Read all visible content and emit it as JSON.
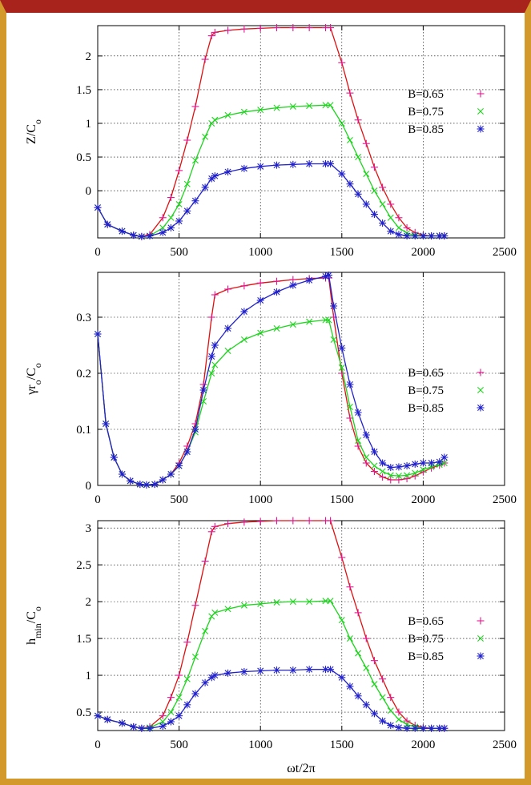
{
  "chart_data": [
    {
      "type": "line",
      "ylabel": "Z/C",
      "ylabel_sub": "o",
      "xlabel": "",
      "xlim": [
        0,
        2500
      ],
      "ylim": [
        -0.7,
        2.45
      ],
      "x_ticks": [
        "0",
        "500",
        "1000",
        "1500",
        "2000",
        "2500"
      ],
      "y_ticks": [
        {
          "value": 0,
          "label": "0"
        },
        {
          "value": 0.5,
          "label": "0.5"
        },
        {
          "value": 1,
          "label": "1"
        },
        {
          "value": 1.5,
          "label": "1.5"
        },
        {
          "value": 2,
          "label": "2"
        }
      ],
      "grid": true,
      "legend_position": "right",
      "series": [
        {
          "name": "B=0.65",
          "marker": "plus",
          "color": "#e2178f",
          "line_color": "#e01010",
          "x": [
            0,
            60,
            150,
            220,
            270,
            320,
            400,
            450,
            500,
            550,
            600,
            660,
            700,
            720,
            800,
            900,
            1000,
            1100,
            1200,
            1300,
            1400,
            1430,
            1500,
            1550,
            1600,
            1650,
            1700,
            1750,
            1800,
            1850,
            1900,
            1950,
            2000,
            2050,
            2100,
            2130
          ],
          "y": [
            -0.25,
            -0.5,
            -0.6,
            -0.66,
            -0.68,
            -0.65,
            -0.4,
            -0.1,
            0.3,
            0.75,
            1.25,
            1.95,
            2.3,
            2.35,
            2.38,
            2.4,
            2.41,
            2.42,
            2.42,
            2.42,
            2.42,
            2.42,
            1.9,
            1.45,
            1.05,
            0.7,
            0.35,
            0.05,
            -0.2,
            -0.4,
            -0.55,
            -0.62,
            -0.66,
            -0.67,
            -0.67,
            -0.67
          ]
        },
        {
          "name": "B=0.75",
          "marker": "x",
          "color": "#1ed41e",
          "line_color": "#1ed41e",
          "x": [
            0,
            60,
            150,
            220,
            270,
            320,
            400,
            450,
            500,
            550,
            600,
            660,
            700,
            720,
            800,
            900,
            1000,
            1100,
            1200,
            1300,
            1400,
            1430,
            1500,
            1550,
            1600,
            1650,
            1700,
            1750,
            1800,
            1850,
            1900,
            1950,
            2000,
            2050,
            2100,
            2130
          ],
          "y": [
            -0.25,
            -0.5,
            -0.6,
            -0.66,
            -0.68,
            -0.67,
            -0.55,
            -0.4,
            -0.2,
            0.1,
            0.45,
            0.8,
            1.0,
            1.05,
            1.12,
            1.17,
            1.2,
            1.23,
            1.25,
            1.26,
            1.27,
            1.27,
            1.0,
            0.75,
            0.5,
            0.25,
            0.0,
            -0.2,
            -0.4,
            -0.55,
            -0.63,
            -0.66,
            -0.67,
            -0.67,
            -0.67,
            -0.67
          ]
        },
        {
          "name": "B=0.85",
          "marker": "star",
          "color": "#2222cc",
          "line_color": "#2222cc",
          "x": [
            0,
            60,
            150,
            220,
            270,
            320,
            400,
            450,
            500,
            550,
            600,
            660,
            700,
            720,
            800,
            900,
            1000,
            1100,
            1200,
            1300,
            1400,
            1430,
            1500,
            1550,
            1600,
            1650,
            1700,
            1750,
            1800,
            1850,
            1900,
            1950,
            2000,
            2050,
            2100,
            2130
          ],
          "y": [
            -0.25,
            -0.5,
            -0.6,
            -0.66,
            -0.68,
            -0.67,
            -0.62,
            -0.55,
            -0.45,
            -0.3,
            -0.15,
            0.05,
            0.18,
            0.22,
            0.28,
            0.33,
            0.36,
            0.38,
            0.39,
            0.4,
            0.4,
            0.4,
            0.25,
            0.1,
            -0.05,
            -0.2,
            -0.35,
            -0.48,
            -0.6,
            -0.65,
            -0.67,
            -0.67,
            -0.67,
            -0.67,
            -0.67,
            -0.67
          ]
        }
      ]
    },
    {
      "type": "line",
      "ylabel": "γr",
      "ylabel_sub": "o",
      "ylabel_tail": "/C",
      "ylabel_sub2": "o",
      "xlabel": "",
      "xlim": [
        0,
        2500
      ],
      "ylim": [
        0,
        0.38
      ],
      "x_ticks": [
        "0",
        "500",
        "1000",
        "1500",
        "2000",
        "2500"
      ],
      "y_ticks": [
        {
          "value": 0,
          "label": "0"
        },
        {
          "value": 0.1,
          "label": "0.1"
        },
        {
          "value": 0.2,
          "label": "0.2"
        },
        {
          "value": 0.3,
          "label": "0.3"
        }
      ],
      "grid": true,
      "legend_position": "right",
      "series": [
        {
          "name": "B=0.65",
          "marker": "plus",
          "color": "#e2178f",
          "line_color": "#e01010",
          "x": [
            0,
            50,
            100,
            150,
            200,
            260,
            300,
            350,
            400,
            450,
            500,
            550,
            600,
            650,
            700,
            720,
            800,
            900,
            1000,
            1100,
            1200,
            1300,
            1400,
            1420,
            1450,
            1500,
            1550,
            1600,
            1650,
            1700,
            1750,
            1800,
            1850,
            1900,
            1950,
            2000,
            2050,
            2100,
            2130
          ],
          "y": [
            0.27,
            0.11,
            0.05,
            0.02,
            0.008,
            0.002,
            0.001,
            0.002,
            0.01,
            0.02,
            0.04,
            0.07,
            0.11,
            0.18,
            0.3,
            0.34,
            0.35,
            0.356,
            0.361,
            0.364,
            0.367,
            0.369,
            0.37,
            0.37,
            0.3,
            0.2,
            0.12,
            0.07,
            0.04,
            0.025,
            0.015,
            0.01,
            0.01,
            0.012,
            0.017,
            0.024,
            0.031,
            0.036,
            0.04
          ]
        },
        {
          "name": "B=0.75",
          "marker": "x",
          "color": "#1ed41e",
          "line_color": "#1ed41e",
          "x": [
            0,
            50,
            100,
            150,
            200,
            260,
            300,
            350,
            400,
            450,
            500,
            550,
            600,
            650,
            700,
            720,
            800,
            900,
            1000,
            1100,
            1200,
            1300,
            1400,
            1420,
            1450,
            1500,
            1550,
            1600,
            1650,
            1700,
            1750,
            1800,
            1850,
            1900,
            1950,
            2000,
            2050,
            2100,
            2130
          ],
          "y": [
            0.27,
            0.11,
            0.05,
            0.02,
            0.008,
            0.002,
            0.001,
            0.002,
            0.01,
            0.02,
            0.035,
            0.06,
            0.095,
            0.15,
            0.2,
            0.215,
            0.24,
            0.26,
            0.272,
            0.28,
            0.287,
            0.292,
            0.295,
            0.295,
            0.26,
            0.21,
            0.14,
            0.08,
            0.05,
            0.035,
            0.025,
            0.018,
            0.017,
            0.018,
            0.022,
            0.028,
            0.033,
            0.037,
            0.04
          ]
        },
        {
          "name": "B=0.85",
          "marker": "star",
          "color": "#2222cc",
          "line_color": "#2222cc",
          "x": [
            0,
            50,
            100,
            150,
            200,
            260,
            300,
            350,
            400,
            450,
            500,
            550,
            600,
            650,
            700,
            720,
            800,
            900,
            1000,
            1100,
            1200,
            1300,
            1400,
            1420,
            1450,
            1500,
            1550,
            1600,
            1650,
            1700,
            1750,
            1800,
            1850,
            1900,
            1950,
            2000,
            2050,
            2100,
            2130
          ],
          "y": [
            0.27,
            0.11,
            0.05,
            0.02,
            0.008,
            0.002,
            0.001,
            0.002,
            0.01,
            0.02,
            0.035,
            0.06,
            0.1,
            0.17,
            0.23,
            0.25,
            0.28,
            0.31,
            0.33,
            0.345,
            0.357,
            0.366,
            0.373,
            0.375,
            0.32,
            0.245,
            0.18,
            0.13,
            0.09,
            0.06,
            0.04,
            0.032,
            0.033,
            0.035,
            0.038,
            0.04,
            0.04,
            0.042,
            0.05
          ]
        }
      ]
    },
    {
      "type": "line",
      "ylabel": "h",
      "ylabel_sub": "min",
      "ylabel_tail": "/C",
      "ylabel_sub2": "o",
      "xlabel": "ωt/2π",
      "xlim": [
        0,
        2500
      ],
      "ylim": [
        0.25,
        3.1
      ],
      "x_ticks": [
        "0",
        "500",
        "1000",
        "1500",
        "2000",
        "2500"
      ],
      "y_ticks": [
        {
          "value": 0.5,
          "label": "0.5"
        },
        {
          "value": 1,
          "label": "1"
        },
        {
          "value": 1.5,
          "label": "1.5"
        },
        {
          "value": 2,
          "label": "2"
        },
        {
          "value": 2.5,
          "label": "2.5"
        },
        {
          "value": 3,
          "label": "3"
        }
      ],
      "grid": true,
      "legend_position": "right",
      "series": [
        {
          "name": "B=0.65",
          "marker": "plus",
          "color": "#e2178f",
          "line_color": "#e01010",
          "x": [
            0,
            60,
            150,
            220,
            270,
            320,
            400,
            450,
            500,
            550,
            600,
            660,
            700,
            720,
            800,
            900,
            1000,
            1100,
            1200,
            1300,
            1400,
            1430,
            1500,
            1550,
            1600,
            1650,
            1700,
            1750,
            1800,
            1850,
            1900,
            1950,
            2000,
            2050,
            2100,
            2130
          ],
          "y": [
            0.45,
            0.4,
            0.35,
            0.3,
            0.28,
            0.3,
            0.45,
            0.7,
            1.0,
            1.45,
            1.95,
            2.55,
            2.95,
            3.02,
            3.06,
            3.08,
            3.09,
            3.1,
            3.1,
            3.1,
            3.1,
            3.1,
            2.6,
            2.2,
            1.85,
            1.5,
            1.2,
            0.95,
            0.7,
            0.5,
            0.38,
            0.32,
            0.29,
            0.28,
            0.28,
            0.28
          ]
        },
        {
          "name": "B=0.75",
          "marker": "x",
          "color": "#1ed41e",
          "line_color": "#1ed41e",
          "x": [
            0,
            60,
            150,
            220,
            270,
            320,
            400,
            450,
            500,
            550,
            600,
            660,
            700,
            720,
            800,
            900,
            1000,
            1100,
            1200,
            1300,
            1400,
            1430,
            1500,
            1550,
            1600,
            1650,
            1700,
            1750,
            1800,
            1850,
            1900,
            1950,
            2000,
            2050,
            2100,
            2130
          ],
          "y": [
            0.45,
            0.4,
            0.35,
            0.3,
            0.28,
            0.29,
            0.37,
            0.5,
            0.7,
            0.95,
            1.25,
            1.6,
            1.8,
            1.85,
            1.9,
            1.95,
            1.97,
            1.99,
            2.0,
            2.0,
            2.01,
            2.01,
            1.75,
            1.5,
            1.3,
            1.1,
            0.88,
            0.7,
            0.52,
            0.4,
            0.33,
            0.3,
            0.28,
            0.28,
            0.28,
            0.28
          ]
        },
        {
          "name": "B=0.85",
          "marker": "star",
          "color": "#2222cc",
          "line_color": "#2222cc",
          "x": [
            0,
            60,
            150,
            220,
            270,
            320,
            400,
            450,
            500,
            550,
            600,
            660,
            700,
            720,
            800,
            900,
            1000,
            1100,
            1200,
            1300,
            1400,
            1430,
            1500,
            1550,
            1600,
            1650,
            1700,
            1750,
            1800,
            1850,
            1900,
            1950,
            2000,
            2050,
            2100,
            2130
          ],
          "y": [
            0.45,
            0.4,
            0.35,
            0.3,
            0.28,
            0.28,
            0.31,
            0.37,
            0.45,
            0.6,
            0.75,
            0.9,
            0.97,
            1.0,
            1.03,
            1.05,
            1.06,
            1.07,
            1.07,
            1.08,
            1.08,
            1.08,
            0.97,
            0.85,
            0.72,
            0.6,
            0.48,
            0.38,
            0.32,
            0.29,
            0.28,
            0.28,
            0.28,
            0.28,
            0.28,
            0.28
          ]
        }
      ]
    }
  ]
}
